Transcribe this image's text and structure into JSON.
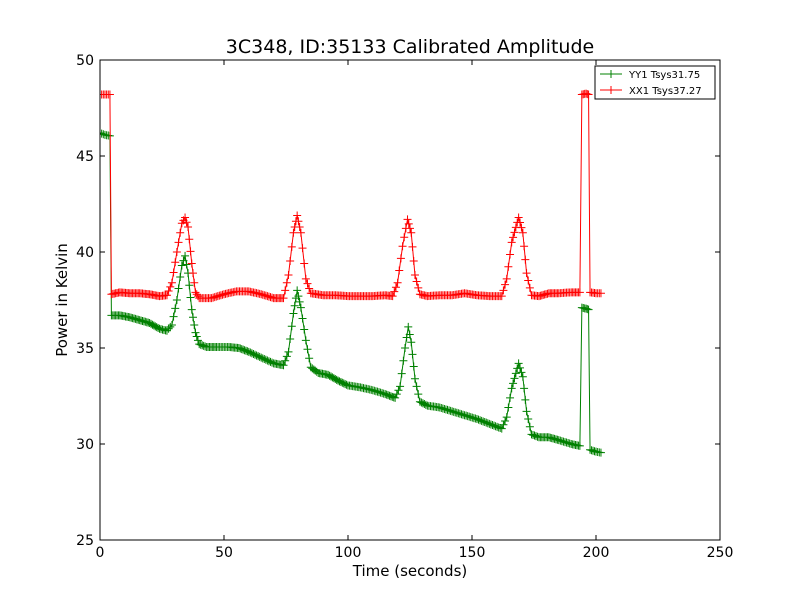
{
  "chart_data": {
    "type": "line",
    "title": "3C348, ID:35133 Calibrated Amplitude",
    "xlabel": "Time (seconds)",
    "ylabel": "Power in Kelvin",
    "xlim": [
      0,
      250
    ],
    "ylim": [
      25,
      50
    ],
    "xticks": [
      0,
      50,
      100,
      150,
      200,
      250
    ],
    "yticks": [
      25,
      30,
      35,
      40,
      45,
      50
    ],
    "grid": false,
    "legend_position": "top-right",
    "marker": "+",
    "series": [
      {
        "name": "YY1 Tsys31.75",
        "color": "#008000",
        "points": [
          [
            0,
            46.2
          ],
          [
            2,
            46.1
          ],
          [
            4,
            46.05
          ],
          [
            4.6,
            36.7
          ],
          [
            8,
            36.7
          ],
          [
            12,
            36.6
          ],
          [
            16,
            36.45
          ],
          [
            20,
            36.3
          ],
          [
            24,
            36.0
          ],
          [
            27,
            35.9
          ],
          [
            29,
            36.2
          ],
          [
            31,
            37.5
          ],
          [
            33,
            39.3
          ],
          [
            34.3,
            39.8
          ],
          [
            35.5,
            38.9
          ],
          [
            37,
            37.0
          ],
          [
            38.5,
            35.8
          ],
          [
            40,
            35.2
          ],
          [
            43,
            35.05
          ],
          [
            47,
            35.05
          ],
          [
            52,
            35.05
          ],
          [
            56,
            35.0
          ],
          [
            60,
            34.8
          ],
          [
            65,
            34.5
          ],
          [
            70,
            34.2
          ],
          [
            74,
            34.1
          ],
          [
            76,
            34.8
          ],
          [
            78,
            36.8
          ],
          [
            79.5,
            38.0
          ],
          [
            81,
            37.1
          ],
          [
            83,
            35.4
          ],
          [
            85,
            34.0
          ],
          [
            88,
            33.7
          ],
          [
            92,
            33.6
          ],
          [
            96,
            33.3
          ],
          [
            100,
            33.05
          ],
          [
            105,
            32.95
          ],
          [
            110,
            32.8
          ],
          [
            115,
            32.6
          ],
          [
            119,
            32.4
          ],
          [
            121,
            33.0
          ],
          [
            123,
            35.0
          ],
          [
            124.3,
            36.1
          ],
          [
            125.5,
            35.3
          ],
          [
            127,
            33.4
          ],
          [
            129,
            32.2
          ],
          [
            132,
            32.0
          ],
          [
            137,
            31.9
          ],
          [
            142,
            31.7
          ],
          [
            147,
            31.5
          ],
          [
            152,
            31.3
          ],
          [
            157,
            31.05
          ],
          [
            162,
            30.8
          ],
          [
            164,
            31.4
          ],
          [
            166,
            32.9
          ],
          [
            168.8,
            34.2
          ],
          [
            170.5,
            33.5
          ],
          [
            172,
            31.7
          ],
          [
            174,
            30.5
          ],
          [
            177,
            30.35
          ],
          [
            181,
            30.35
          ],
          [
            185,
            30.2
          ],
          [
            190,
            30.0
          ],
          [
            193.5,
            29.9
          ],
          [
            194.3,
            37.1
          ],
          [
            196,
            37.05
          ],
          [
            197,
            37.0
          ],
          [
            197.6,
            29.7
          ],
          [
            200,
            29.6
          ],
          [
            202,
            29.55
          ]
        ]
      },
      {
        "name": "XX1 Tsys37.27",
        "color": "#ff0000",
        "points": [
          [
            0,
            48.2
          ],
          [
            2,
            48.2
          ],
          [
            4,
            48.2
          ],
          [
            4.6,
            37.8
          ],
          [
            8,
            37.9
          ],
          [
            12,
            37.85
          ],
          [
            16,
            37.85
          ],
          [
            20,
            37.8
          ],
          [
            24,
            37.7
          ],
          [
            27,
            37.75
          ],
          [
            29,
            38.4
          ],
          [
            31,
            40.0
          ],
          [
            33,
            41.5
          ],
          [
            34.3,
            41.8
          ],
          [
            35.5,
            41.3
          ],
          [
            37,
            39.4
          ],
          [
            38.5,
            37.9
          ],
          [
            40,
            37.6
          ],
          [
            45,
            37.6
          ],
          [
            50,
            37.8
          ],
          [
            55,
            37.95
          ],
          [
            60,
            37.95
          ],
          [
            65,
            37.8
          ],
          [
            70,
            37.6
          ],
          [
            74,
            37.6
          ],
          [
            76,
            38.8
          ],
          [
            78,
            41.0
          ],
          [
            79.5,
            41.9
          ],
          [
            81,
            41.0
          ],
          [
            83,
            38.6
          ],
          [
            85,
            37.85
          ],
          [
            90,
            37.75
          ],
          [
            95,
            37.75
          ],
          [
            100,
            37.7
          ],
          [
            105,
            37.7
          ],
          [
            110,
            37.7
          ],
          [
            115,
            37.75
          ],
          [
            118,
            37.7
          ],
          [
            120,
            38.4
          ],
          [
            122,
            40.3
          ],
          [
            124,
            41.7
          ],
          [
            125.5,
            41.0
          ],
          [
            127,
            38.8
          ],
          [
            129,
            37.8
          ],
          [
            132,
            37.7
          ],
          [
            137,
            37.75
          ],
          [
            142,
            37.75
          ],
          [
            147,
            37.85
          ],
          [
            152,
            37.75
          ],
          [
            157,
            37.7
          ],
          [
            162,
            37.7
          ],
          [
            164,
            38.6
          ],
          [
            166,
            40.5
          ],
          [
            168.8,
            41.8
          ],
          [
            170.5,
            41.0
          ],
          [
            172,
            38.9
          ],
          [
            174,
            37.75
          ],
          [
            177,
            37.7
          ],
          [
            181,
            37.85
          ],
          [
            185,
            37.85
          ],
          [
            190,
            37.9
          ],
          [
            193.5,
            37.9
          ],
          [
            194.3,
            48.2
          ],
          [
            196,
            48.25
          ],
          [
            197,
            48.2
          ],
          [
            197.6,
            37.9
          ],
          [
            200,
            37.85
          ],
          [
            202,
            37.85
          ]
        ]
      }
    ]
  }
}
